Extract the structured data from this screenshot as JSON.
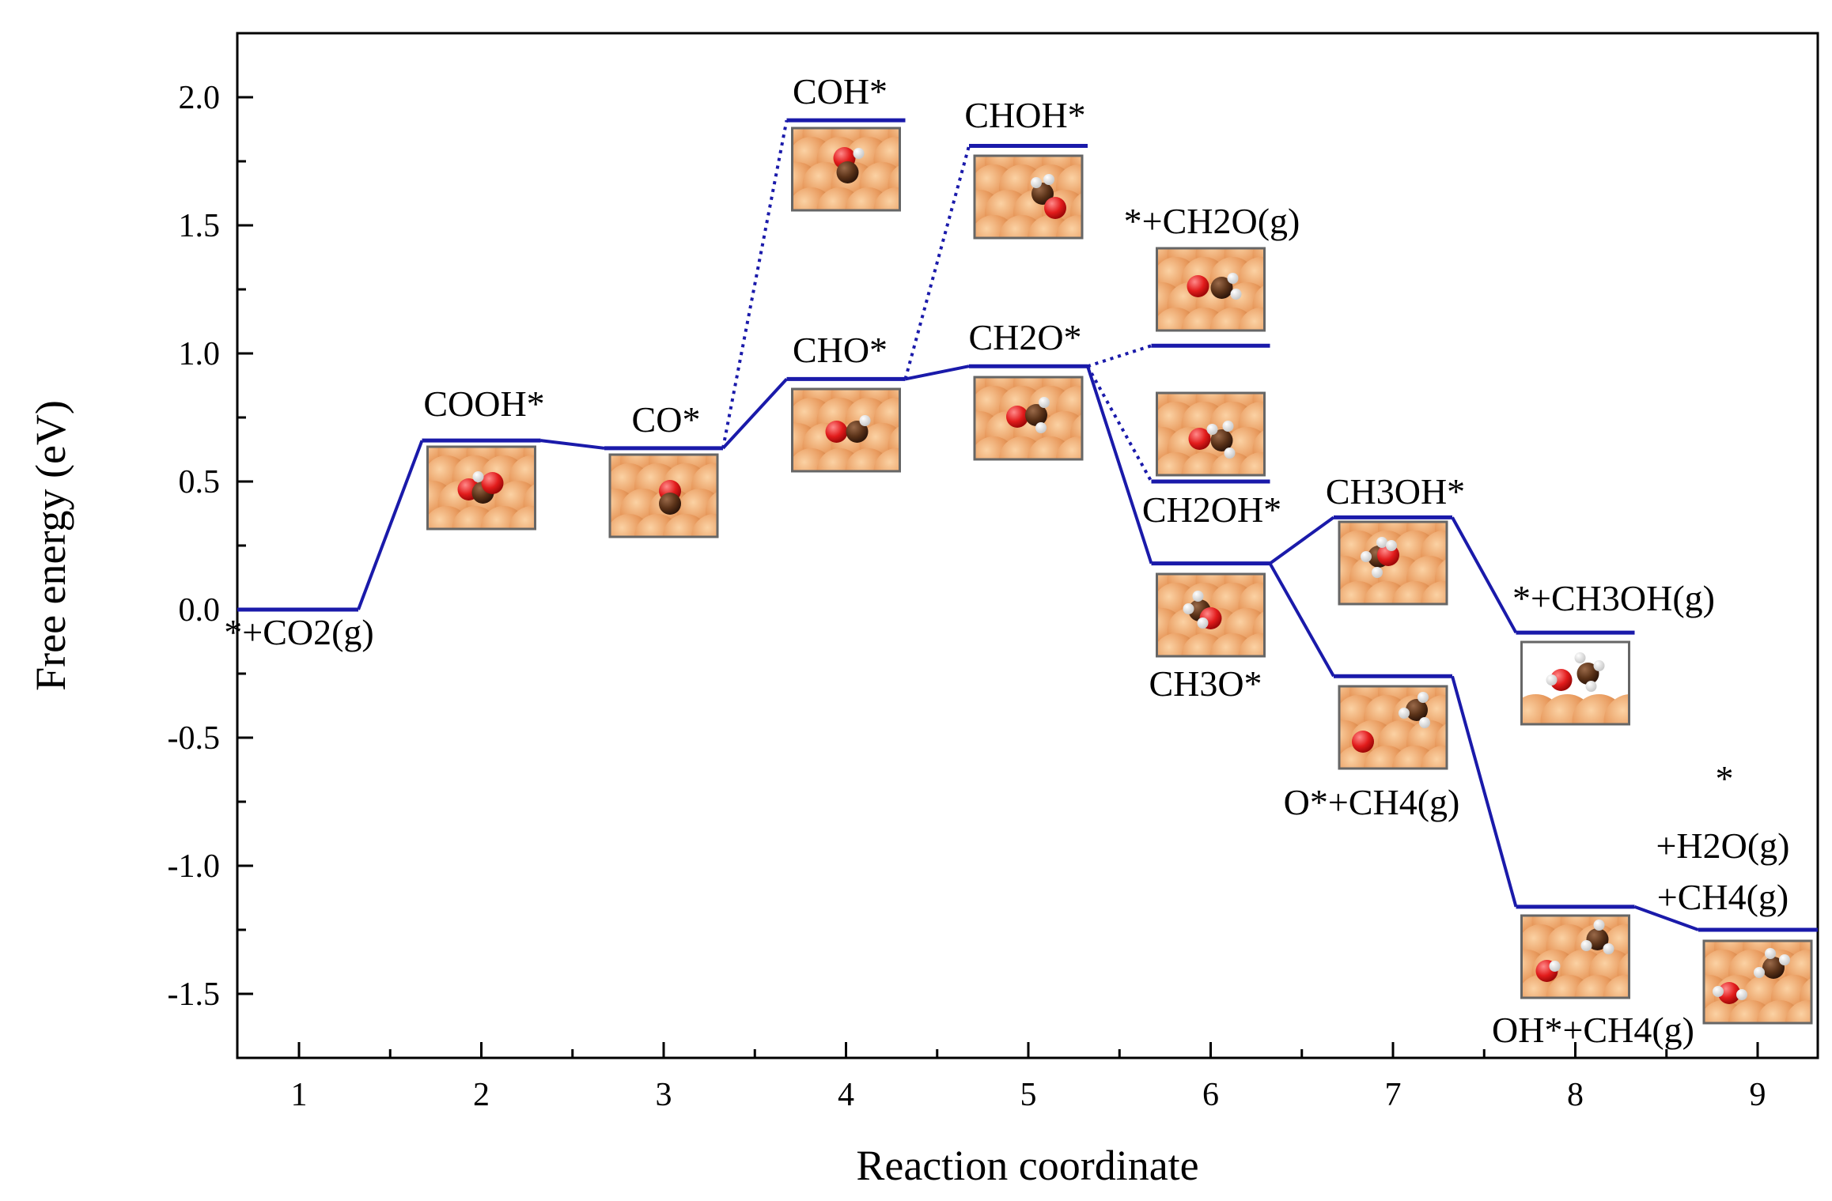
{
  "chart_data": {
    "type": "line",
    "title": "",
    "xlabel": "Reaction coordinate",
    "ylabel": "Free energy (eV)",
    "xlim": [
      0.65,
      9.35
    ],
    "ylim": [
      -1.75,
      2.25
    ],
    "xticks": [
      "1",
      "2",
      "3",
      "4",
      "5",
      "6",
      "7",
      "8",
      "9"
    ],
    "yticks": [
      "2.0",
      "1.5",
      "1.0",
      "0.5",
      "0.0",
      "-0.5",
      "-1.0",
      "-1.5"
    ],
    "ytick_values": [
      2.0,
      1.5,
      1.0,
      0.5,
      0.0,
      -0.5,
      -1.0,
      -1.5
    ],
    "line_color": "#1a1aaa",
    "levels": [
      {
        "id": "s1",
        "x": 1,
        "y": 0.0
      },
      {
        "id": "s2",
        "x": 2,
        "y": 0.66
      },
      {
        "id": "s3",
        "x": 3,
        "y": 0.63
      },
      {
        "id": "s4",
        "x": 4,
        "y": 0.9
      },
      {
        "id": "s4b",
        "x": 4,
        "y": 1.91
      },
      {
        "id": "s5",
        "x": 5,
        "y": 0.95
      },
      {
        "id": "s5b",
        "x": 5,
        "y": 1.81
      },
      {
        "id": "s6a",
        "x": 6,
        "y": 1.03
      },
      {
        "id": "s6b",
        "x": 6,
        "y": 0.5
      },
      {
        "id": "s6c",
        "x": 6,
        "y": 0.18
      },
      {
        "id": "s7a",
        "x": 7,
        "y": 0.36
      },
      {
        "id": "s7b",
        "x": 7,
        "y": -0.26
      },
      {
        "id": "s8a",
        "x": 8,
        "y": -0.09
      },
      {
        "id": "s8b",
        "x": 8,
        "y": -1.16
      },
      {
        "id": "s9",
        "x": 9,
        "y": -1.25
      }
    ],
    "solid_connections": [
      [
        "s1",
        "s2"
      ],
      [
        "s2",
        "s3"
      ],
      [
        "s3",
        "s4"
      ],
      [
        "s4",
        "s5"
      ],
      [
        "s5",
        "s6c"
      ],
      [
        "s6c",
        "s7a"
      ],
      [
        "s7a",
        "s8a"
      ],
      [
        "s6c",
        "s7b"
      ],
      [
        "s7b",
        "s8b"
      ],
      [
        "s8b",
        "s9"
      ]
    ],
    "dotted_connections": [
      [
        "s3",
        "s4b"
      ],
      [
        "s4",
        "s5b"
      ],
      [
        "s5",
        "s6a"
      ],
      [
        "s5",
        "s6b"
      ]
    ],
    "labels": [
      {
        "id": "lab-s1",
        "text": "*+CO2(g)"
      },
      {
        "id": "lab-s2",
        "text": "COOH*"
      },
      {
        "id": "lab-s3",
        "text": "CO*"
      },
      {
        "id": "lab-s4",
        "text": "CHO*"
      },
      {
        "id": "lab-s4b",
        "text": "COH*"
      },
      {
        "id": "lab-s5",
        "text": "CH2O*"
      },
      {
        "id": "lab-s5b",
        "text": "CHOH*"
      },
      {
        "id": "lab-s6a",
        "text": "*+CH2O(g)"
      },
      {
        "id": "lab-s6b",
        "text": "CH2OH*"
      },
      {
        "id": "lab-s6c",
        "text": "CH3O*"
      },
      {
        "id": "lab-s7a",
        "text": "CH3OH*"
      },
      {
        "id": "lab-s7b",
        "text": "O*+CH4(g)"
      },
      {
        "id": "lab-s8a",
        "text": "*+CH3OH(g)"
      },
      {
        "id": "lab-s8b",
        "text": "OH*+CH4(g)"
      },
      {
        "id": "lab-s9-1",
        "text": "*"
      },
      {
        "id": "lab-s9-2",
        "text": "+H2O(g)"
      },
      {
        "id": "lab-s9-3",
        "text": "+CH4(g)"
      }
    ]
  }
}
